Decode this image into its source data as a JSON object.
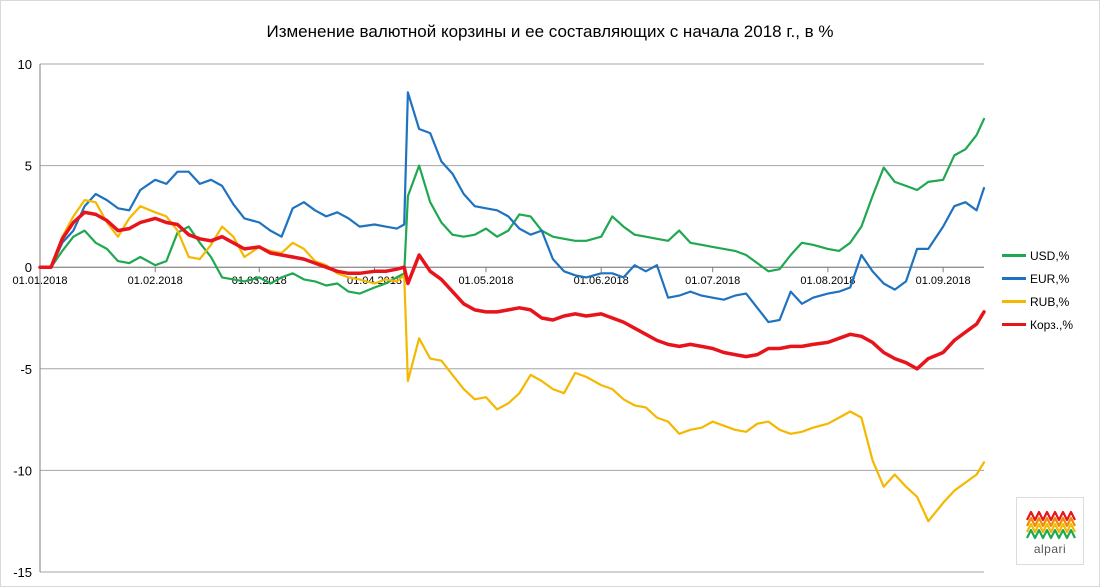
{
  "chart_data": {
    "type": "line",
    "title": "Изменение валютной корзины и ее составляющих с начала 2018 г., в %",
    "xlabel": "",
    "ylabel": "",
    "x_range": [
      "2018-01-01",
      "2018-09-12"
    ],
    "ylim": [
      -15,
      10
    ],
    "y_ticks": [
      10,
      5,
      0,
      -5,
      -10,
      -15
    ],
    "y_tick_labels": [
      "10",
      "5",
      "0",
      "-5",
      "-10",
      "-15"
    ],
    "x_tick_dates": [
      "2018-01-01",
      "2018-02-01",
      "2018-03-01",
      "2018-04-01",
      "2018-05-01",
      "2018-06-01",
      "2018-07-01",
      "2018-08-01",
      "2018-09-01"
    ],
    "x_tick_labels": [
      "01.01.2018",
      "01.02.2018",
      "01.03.2018",
      "01.04.2018",
      "01.05.2018",
      "01.06.2018",
      "01.07.2018",
      "01.08.2018",
      "01.09.2018"
    ],
    "grid": "horizontal",
    "legend_position": "right",
    "series": [
      {
        "name": "USD,%",
        "color": "#1fa84f",
        "x": [
          "2018-01-01",
          "2018-01-04",
          "2018-01-07",
          "2018-01-10",
          "2018-01-13",
          "2018-01-16",
          "2018-01-19",
          "2018-01-22",
          "2018-01-25",
          "2018-01-28",
          "2018-02-01",
          "2018-02-04",
          "2018-02-07",
          "2018-02-10",
          "2018-02-13",
          "2018-02-16",
          "2018-02-19",
          "2018-02-22",
          "2018-02-25",
          "2018-03-01",
          "2018-03-04",
          "2018-03-07",
          "2018-03-10",
          "2018-03-13",
          "2018-03-16",
          "2018-03-19",
          "2018-03-22",
          "2018-03-25",
          "2018-03-28",
          "2018-04-01",
          "2018-04-04",
          "2018-04-07",
          "2018-04-09",
          "2018-04-10",
          "2018-04-13",
          "2018-04-16",
          "2018-04-19",
          "2018-04-22",
          "2018-04-25",
          "2018-04-28",
          "2018-05-01",
          "2018-05-04",
          "2018-05-07",
          "2018-05-10",
          "2018-05-13",
          "2018-05-16",
          "2018-05-19",
          "2018-05-22",
          "2018-05-25",
          "2018-05-28",
          "2018-06-01",
          "2018-06-04",
          "2018-06-07",
          "2018-06-10",
          "2018-06-13",
          "2018-06-16",
          "2018-06-19",
          "2018-06-22",
          "2018-06-25",
          "2018-06-28",
          "2018-07-01",
          "2018-07-04",
          "2018-07-07",
          "2018-07-10",
          "2018-07-13",
          "2018-07-16",
          "2018-07-19",
          "2018-07-22",
          "2018-07-25",
          "2018-07-28",
          "2018-08-01",
          "2018-08-04",
          "2018-08-07",
          "2018-08-10",
          "2018-08-13",
          "2018-08-16",
          "2018-08-19",
          "2018-08-22",
          "2018-08-25",
          "2018-08-28",
          "2018-09-01",
          "2018-09-04",
          "2018-09-07",
          "2018-09-10",
          "2018-09-12"
        ],
        "values": [
          0,
          0,
          0.8,
          1.5,
          1.8,
          1.2,
          0.9,
          0.3,
          0.2,
          0.5,
          0.1,
          0.3,
          1.7,
          2.0,
          1.2,
          0.5,
          -0.5,
          -0.6,
          -0.7,
          -0.5,
          -0.8,
          -0.5,
          -0.3,
          -0.6,
          -0.7,
          -0.9,
          -0.8,
          -1.2,
          -1.3,
          -1.0,
          -0.8,
          -0.5,
          -0.3,
          3.5,
          5.0,
          3.2,
          2.2,
          1.6,
          1.5,
          1.6,
          1.9,
          1.5,
          1.8,
          2.6,
          2.5,
          1.8,
          1.5,
          1.4,
          1.3,
          1.3,
          1.5,
          2.5,
          2.0,
          1.6,
          1.5,
          1.4,
          1.3,
          1.8,
          1.2,
          1.1,
          1.0,
          0.9,
          0.8,
          0.6,
          0.2,
          -0.2,
          -0.1,
          0.6,
          1.2,
          1.1,
          0.9,
          0.8,
          1.2,
          2.0,
          3.5,
          4.9,
          4.2,
          4.0,
          3.8,
          4.2,
          4.3,
          5.5,
          5.8,
          6.5,
          7.3
        ]
      },
      {
        "name": "EUR,%",
        "color": "#1f72c0",
        "x": [
          "2018-01-01",
          "2018-01-04",
          "2018-01-07",
          "2018-01-10",
          "2018-01-13",
          "2018-01-16",
          "2018-01-19",
          "2018-01-22",
          "2018-01-25",
          "2018-01-28",
          "2018-02-01",
          "2018-02-04",
          "2018-02-07",
          "2018-02-10",
          "2018-02-13",
          "2018-02-16",
          "2018-02-19",
          "2018-02-22",
          "2018-02-25",
          "2018-03-01",
          "2018-03-04",
          "2018-03-07",
          "2018-03-10",
          "2018-03-13",
          "2018-03-16",
          "2018-03-19",
          "2018-03-22",
          "2018-03-25",
          "2018-03-28",
          "2018-04-01",
          "2018-04-04",
          "2018-04-07",
          "2018-04-09",
          "2018-04-10",
          "2018-04-13",
          "2018-04-16",
          "2018-04-19",
          "2018-04-22",
          "2018-04-25",
          "2018-04-28",
          "2018-05-01",
          "2018-05-04",
          "2018-05-07",
          "2018-05-10",
          "2018-05-13",
          "2018-05-16",
          "2018-05-19",
          "2018-05-22",
          "2018-05-25",
          "2018-05-28",
          "2018-06-01",
          "2018-06-04",
          "2018-06-07",
          "2018-06-10",
          "2018-06-13",
          "2018-06-16",
          "2018-06-19",
          "2018-06-22",
          "2018-06-25",
          "2018-06-28",
          "2018-07-01",
          "2018-07-04",
          "2018-07-07",
          "2018-07-10",
          "2018-07-13",
          "2018-07-16",
          "2018-07-19",
          "2018-07-22",
          "2018-07-25",
          "2018-07-28",
          "2018-08-01",
          "2018-08-04",
          "2018-08-07",
          "2018-08-10",
          "2018-08-13",
          "2018-08-16",
          "2018-08-19",
          "2018-08-22",
          "2018-08-25",
          "2018-08-28",
          "2018-09-01",
          "2018-09-04",
          "2018-09-07",
          "2018-09-10",
          "2018-09-12"
        ],
        "values": [
          0,
          0,
          1.2,
          1.8,
          3.0,
          3.6,
          3.3,
          2.9,
          2.8,
          3.8,
          4.3,
          4.1,
          4.7,
          4.7,
          4.1,
          4.3,
          4.0,
          3.1,
          2.4,
          2.2,
          1.8,
          1.5,
          2.9,
          3.2,
          2.8,
          2.5,
          2.7,
          2.4,
          2.0,
          2.1,
          2.0,
          1.9,
          2.1,
          8.6,
          6.8,
          6.6,
          5.2,
          4.6,
          3.6,
          3.0,
          2.9,
          2.8,
          2.5,
          1.9,
          1.6,
          1.8,
          0.4,
          -0.2,
          -0.4,
          -0.5,
          -0.3,
          -0.3,
          -0.5,
          0.1,
          -0.2,
          0.1,
          -1.5,
          -1.4,
          -1.2,
          -1.4,
          -1.5,
          -1.6,
          -1.4,
          -1.3,
          -2.0,
          -2.7,
          -2.6,
          -1.2,
          -1.8,
          -1.5,
          -1.3,
          -1.2,
          -1.0,
          0.6,
          -0.2,
          -0.8,
          -1.1,
          -0.7,
          0.9,
          0.9,
          2.0,
          3.0,
          3.2,
          2.8,
          3.9
        ]
      },
      {
        "name": "RUB,%",
        "color": "#f5b800",
        "x": [
          "2018-01-01",
          "2018-01-04",
          "2018-01-07",
          "2018-01-10",
          "2018-01-13",
          "2018-01-16",
          "2018-01-19",
          "2018-01-22",
          "2018-01-25",
          "2018-01-28",
          "2018-02-01",
          "2018-02-04",
          "2018-02-07",
          "2018-02-10",
          "2018-02-13",
          "2018-02-16",
          "2018-02-19",
          "2018-02-22",
          "2018-02-25",
          "2018-03-01",
          "2018-03-04",
          "2018-03-07",
          "2018-03-10",
          "2018-03-13",
          "2018-03-16",
          "2018-03-19",
          "2018-03-22",
          "2018-03-25",
          "2018-03-28",
          "2018-04-01",
          "2018-04-04",
          "2018-04-07",
          "2018-04-09",
          "2018-04-10",
          "2018-04-13",
          "2018-04-16",
          "2018-04-19",
          "2018-04-22",
          "2018-04-25",
          "2018-04-28",
          "2018-05-01",
          "2018-05-04",
          "2018-05-07",
          "2018-05-10",
          "2018-05-13",
          "2018-05-16",
          "2018-05-19",
          "2018-05-22",
          "2018-05-25",
          "2018-05-28",
          "2018-06-01",
          "2018-06-04",
          "2018-06-07",
          "2018-06-10",
          "2018-06-13",
          "2018-06-16",
          "2018-06-19",
          "2018-06-22",
          "2018-06-25",
          "2018-06-28",
          "2018-07-01",
          "2018-07-04",
          "2018-07-07",
          "2018-07-10",
          "2018-07-13",
          "2018-07-16",
          "2018-07-19",
          "2018-07-22",
          "2018-07-25",
          "2018-07-28",
          "2018-08-01",
          "2018-08-04",
          "2018-08-07",
          "2018-08-10",
          "2018-08-13",
          "2018-08-16",
          "2018-08-19",
          "2018-08-22",
          "2018-08-25",
          "2018-08-28",
          "2018-09-01",
          "2018-09-04",
          "2018-09-07",
          "2018-09-10",
          "2018-09-12"
        ],
        "values": [
          0,
          0,
          1.5,
          2.5,
          3.3,
          3.2,
          2.2,
          1.5,
          2.4,
          3.0,
          2.7,
          2.5,
          1.8,
          0.5,
          0.4,
          1.1,
          2.0,
          1.5,
          0.5,
          1.0,
          0.8,
          0.7,
          1.2,
          0.9,
          0.3,
          0.1,
          -0.3,
          -0.5,
          -0.6,
          -0.8,
          -0.6,
          -0.7,
          -0.4,
          -5.6,
          -3.5,
          -4.5,
          -4.6,
          -5.3,
          -6.0,
          -6.5,
          -6.4,
          -7.0,
          -6.7,
          -6.2,
          -5.3,
          -5.6,
          -6.0,
          -6.2,
          -5.2,
          -5.4,
          -5.8,
          -6.0,
          -6.5,
          -6.8,
          -6.9,
          -7.4,
          -7.6,
          -8.2,
          -8.0,
          -7.9,
          -7.6,
          -7.8,
          -8.0,
          -8.1,
          -7.7,
          -7.6,
          -8.0,
          -8.2,
          -8.1,
          -7.9,
          -7.7,
          -7.4,
          -7.1,
          -7.4,
          -9.5,
          -10.8,
          -10.2,
          -10.8,
          -11.3,
          -12.5,
          -11.6,
          -11.0,
          -10.6,
          -10.2,
          -9.6
        ]
      },
      {
        "name": "Корз.,%",
        "color": "#e8141b",
        "x": [
          "2018-01-01",
          "2018-01-04",
          "2018-01-07",
          "2018-01-10",
          "2018-01-13",
          "2018-01-16",
          "2018-01-19",
          "2018-01-22",
          "2018-01-25",
          "2018-01-28",
          "2018-02-01",
          "2018-02-04",
          "2018-02-07",
          "2018-02-10",
          "2018-02-13",
          "2018-02-16",
          "2018-02-19",
          "2018-02-22",
          "2018-02-25",
          "2018-03-01",
          "2018-03-04",
          "2018-03-07",
          "2018-03-10",
          "2018-03-13",
          "2018-03-16",
          "2018-03-19",
          "2018-03-22",
          "2018-03-25",
          "2018-03-28",
          "2018-04-01",
          "2018-04-04",
          "2018-04-07",
          "2018-04-09",
          "2018-04-10",
          "2018-04-13",
          "2018-04-16",
          "2018-04-19",
          "2018-04-22",
          "2018-04-25",
          "2018-04-28",
          "2018-05-01",
          "2018-05-04",
          "2018-05-07",
          "2018-05-10",
          "2018-05-13",
          "2018-05-16",
          "2018-05-19",
          "2018-05-22",
          "2018-05-25",
          "2018-05-28",
          "2018-06-01",
          "2018-06-04",
          "2018-06-07",
          "2018-06-10",
          "2018-06-13",
          "2018-06-16",
          "2018-06-19",
          "2018-06-22",
          "2018-06-25",
          "2018-06-28",
          "2018-07-01",
          "2018-07-04",
          "2018-07-07",
          "2018-07-10",
          "2018-07-13",
          "2018-07-16",
          "2018-07-19",
          "2018-07-22",
          "2018-07-25",
          "2018-07-28",
          "2018-08-01",
          "2018-08-04",
          "2018-08-07",
          "2018-08-10",
          "2018-08-13",
          "2018-08-16",
          "2018-08-19",
          "2018-08-22",
          "2018-08-25",
          "2018-08-28",
          "2018-09-01",
          "2018-09-04",
          "2018-09-07",
          "2018-09-10",
          "2018-09-12"
        ],
        "values": [
          0,
          0,
          1.4,
          2.2,
          2.7,
          2.6,
          2.3,
          1.8,
          1.9,
          2.2,
          2.4,
          2.2,
          2.1,
          1.6,
          1.4,
          1.3,
          1.5,
          1.2,
          0.9,
          1.0,
          0.7,
          0.6,
          0.5,
          0.4,
          0.2,
          0.0,
          -0.2,
          -0.3,
          -0.3,
          -0.2,
          -0.2,
          -0.1,
          0.0,
          -0.8,
          0.6,
          -0.2,
          -0.6,
          -1.2,
          -1.8,
          -2.1,
          -2.2,
          -2.2,
          -2.1,
          -2.0,
          -2.1,
          -2.5,
          -2.6,
          -2.4,
          -2.3,
          -2.4,
          -2.3,
          -2.5,
          -2.7,
          -3.0,
          -3.3,
          -3.6,
          -3.8,
          -3.9,
          -3.8,
          -3.9,
          -4.0,
          -4.2,
          -4.3,
          -4.4,
          -4.3,
          -4.0,
          -4.0,
          -3.9,
          -3.9,
          -3.8,
          -3.7,
          -3.5,
          -3.3,
          -3.4,
          -3.7,
          -4.2,
          -4.5,
          -4.7,
          -5.0,
          -4.5,
          -4.2,
          -3.6,
          -3.2,
          -2.8,
          -2.2
        ]
      }
    ]
  },
  "logo": {
    "text": "alpari",
    "colors": [
      "#e8141b",
      "#f08a00",
      "#f5b800",
      "#1fa84f"
    ]
  }
}
